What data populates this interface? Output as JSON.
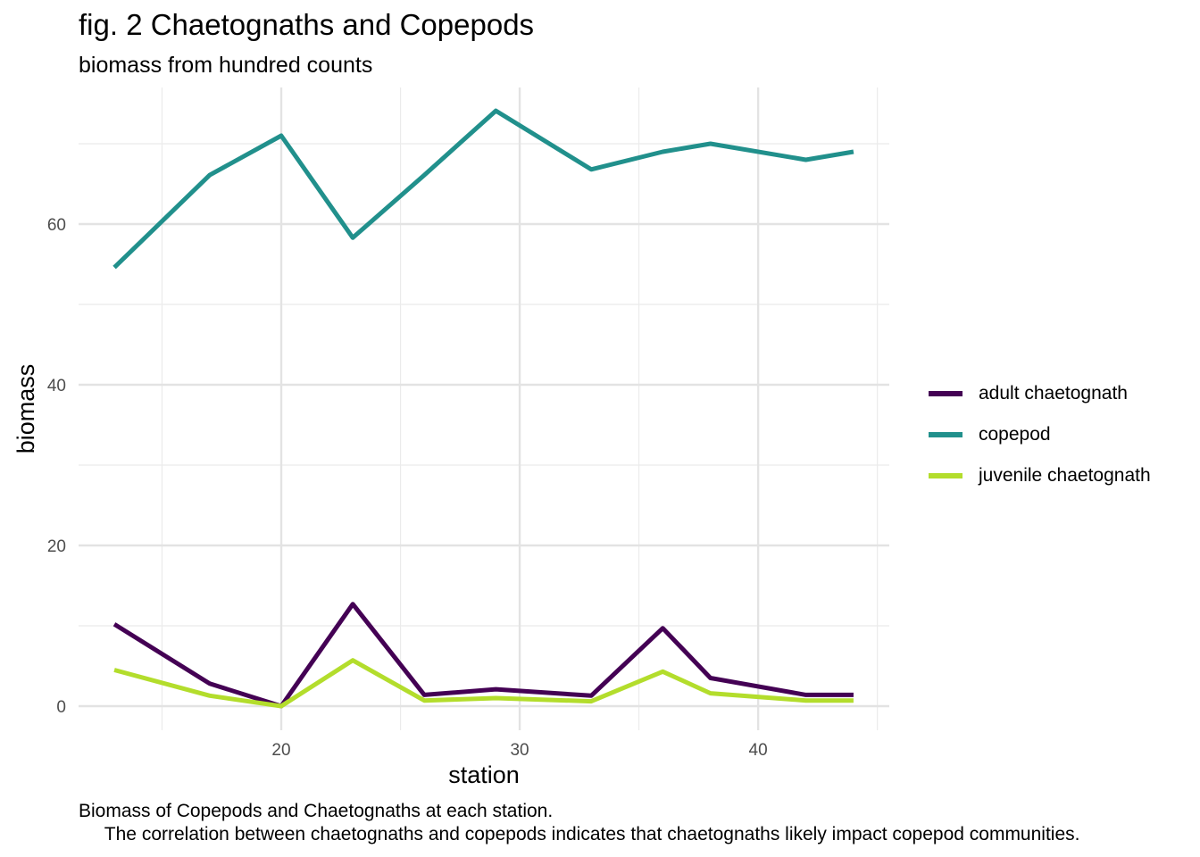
{
  "title": "fig. 2 Chaetognaths and Copepods",
  "subtitle": "biomass from hundred counts",
  "caption_line1": "Biomass of Copepods and Chaetognaths at each station.",
  "caption_line2": "The correlation between chaetognaths and copepods indicates that chaetognaths likely impact copepod communities.",
  "chart_data": {
    "type": "line",
    "xlabel": "station",
    "ylabel": "biomass",
    "xlim": [
      11.5,
      45.5
    ],
    "ylim": [
      -3,
      77
    ],
    "x_ticks": [
      20,
      30,
      40
    ],
    "x_minor_ticks": [
      15,
      25,
      35,
      45
    ],
    "y_ticks": [
      0,
      20,
      40,
      60
    ],
    "y_minor_ticks": [
      10,
      30,
      50,
      70
    ],
    "grid": true,
    "legend_position": "right",
    "x": [
      13,
      17,
      20,
      23,
      26,
      29,
      33,
      36,
      38,
      42,
      44
    ],
    "series": [
      {
        "name": "adult chaetognath",
        "color": "#440154",
        "values": [
          10.2,
          2.8,
          0.0,
          12.7,
          1.4,
          2.1,
          1.3,
          9.7,
          3.5,
          1.4,
          1.4
        ]
      },
      {
        "name": "copepod",
        "color": "#21908C",
        "values": [
          54.6,
          66.1,
          71.0,
          58.3,
          66.1,
          74.1,
          66.8,
          69.0,
          70.0,
          68.0,
          69.0
        ]
      },
      {
        "name": "juvenile chaetognath",
        "color": "#B3DD2C",
        "values": [
          4.5,
          1.3,
          0.0,
          5.7,
          0.7,
          1.0,
          0.6,
          4.3,
          1.6,
          0.7,
          0.7
        ]
      }
    ]
  }
}
